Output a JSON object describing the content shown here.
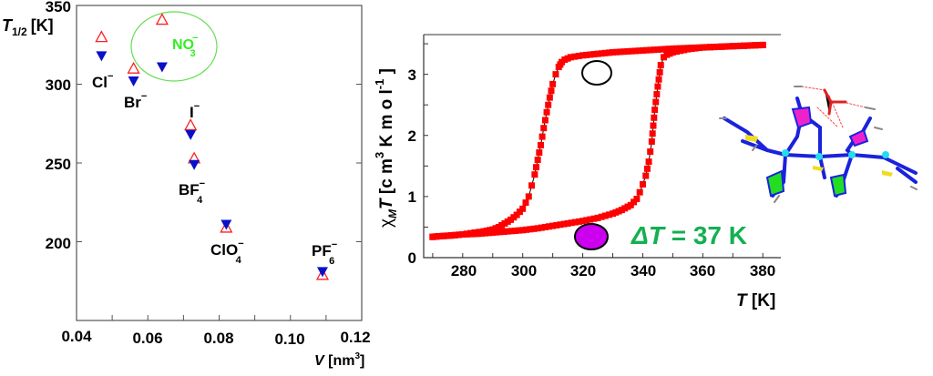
{
  "chart_data": [
    {
      "type": "scatter",
      "title": "",
      "ylabel": "T1/2 [K]",
      "ylabel_parts": {
        "main": "T",
        "sub": "1/2",
        "unit": "[K]"
      },
      "xlabel": "V [nm3]",
      "xlabel_parts": {
        "main": "V",
        "unit_open": "[nm",
        "sup": "3",
        "unit_close": "]"
      },
      "xlim": [
        0.04,
        0.12
      ],
      "ylim": [
        150,
        350
      ],
      "xticks": [
        "0.04",
        "0.06",
        "0.08",
        "0.10",
        "0.12"
      ],
      "yticks": [
        "200",
        "250",
        "300",
        "350"
      ],
      "grid": false,
      "colors": {
        "open_triangle": "#ff2020",
        "filled_triangle": "#0a10c8",
        "highlight_ellipse": "#66dd55",
        "highlight_text": "#33ee22"
      },
      "series": [
        {
          "marker": "open-triangle-up",
          "points": [
            {
              "anion": "Cl",
              "x": 0.047,
              "y": 330
            },
            {
              "anion": "Br",
              "x": 0.056,
              "y": 310
            },
            {
              "anion": "NO3",
              "x": 0.064,
              "y": 341
            },
            {
              "anion": "I",
              "x": 0.072,
              "y": 274
            },
            {
              "anion": "BF4",
              "x": 0.073,
              "y": 253
            },
            {
              "anion": "ClO4",
              "x": 0.082,
              "y": 209
            },
            {
              "anion": "PF6",
              "x": 0.109,
              "y": 179
            }
          ]
        },
        {
          "marker": "filled-triangle-down",
          "points": [
            {
              "anion": "Cl",
              "x": 0.047,
              "y": 318
            },
            {
              "anion": "Br",
              "x": 0.056,
              "y": 302
            },
            {
              "anion": "NO3",
              "x": 0.064,
              "y": 311
            },
            {
              "anion": "I",
              "x": 0.072,
              "y": 268
            },
            {
              "anion": "BF4",
              "x": 0.073,
              "y": 249
            },
            {
              "anion": "ClO4",
              "x": 0.082,
              "y": 211
            },
            {
              "anion": "PF6",
              "x": 0.109,
              "y": 181
            }
          ]
        }
      ],
      "annotations": {
        "cl": {
          "base": "Cl",
          "sup": "−"
        },
        "br": {
          "base": "Br",
          "sup": "−"
        },
        "i": {
          "base": "I",
          "sup": "−"
        },
        "bf4": {
          "base": "BF",
          "sub": "4",
          "sup": "−"
        },
        "clo4": {
          "base": "ClO",
          "sub": "4",
          "sup": "−"
        },
        "pf6": {
          "base": "PF",
          "sub": "6",
          "sup": "−"
        },
        "no3": {
          "base": "NO",
          "sub": "3",
          "sup": "−"
        }
      }
    },
    {
      "type": "line",
      "title": "",
      "ylabel": "χM T [cm3 K mol-1]",
      "ylabel_parts": {
        "chi": "χ",
        "chi_sub": "M",
        "main": "T",
        "unit_open": " [c m",
        "sup": "3",
        "unit_mid": " K m o l",
        "sup2": "-1",
        "unit_close": " ]"
      },
      "xlabel": "T [K]",
      "xlabel_parts": {
        "main": "T",
        "unit": "[K]"
      },
      "xlim": [
        267,
        386
      ],
      "ylim": [
        0,
        3.65
      ],
      "xticks": [
        "280",
        "300",
        "320",
        "340",
        "360",
        "380"
      ],
      "yticks": [
        "0",
        "1",
        "2",
        "3"
      ],
      "grid": false,
      "colors": {
        "points": "#ff0000",
        "line": "#000000",
        "delta_text": "#12b050",
        "low_spin_circle": "#cc00ee"
      },
      "annotation": {
        "delta_symbol": "ΔT",
        "delta_value": "= 37 K"
      },
      "series": [
        {
          "branch": "cooling",
          "x": [
            380,
            370,
            360,
            350,
            340,
            330,
            320,
            316,
            314,
            313,
            312,
            311,
            310,
            309,
            308,
            307,
            306,
            305,
            304,
            303,
            302,
            301,
            300,
            298,
            296,
            294,
            292,
            290,
            287,
            284,
            280,
            276,
            272,
            270
          ],
          "y": [
            3.48,
            3.46,
            3.44,
            3.42,
            3.39,
            3.36,
            3.31,
            3.28,
            3.24,
            3.2,
            3.12,
            3.0,
            2.84,
            2.62,
            2.38,
            2.12,
            1.84,
            1.6,
            1.36,
            1.18,
            1.0,
            0.9,
            0.8,
            0.7,
            0.62,
            0.56,
            0.5,
            0.46,
            0.43,
            0.41,
            0.38,
            0.36,
            0.35,
            0.34
          ]
        },
        {
          "branch": "heating",
          "x": [
            270,
            275,
            280,
            285,
            290,
            295,
            300,
            305,
            310,
            315,
            320,
            325,
            330,
            333,
            336,
            338,
            339,
            340,
            341,
            342,
            343,
            344,
            345,
            346,
            347,
            348,
            350,
            355,
            360,
            370,
            380
          ],
          "y": [
            0.34,
            0.36,
            0.38,
            0.39,
            0.41,
            0.43,
            0.45,
            0.48,
            0.52,
            0.56,
            0.6,
            0.65,
            0.72,
            0.78,
            0.86,
            0.96,
            1.07,
            1.2,
            1.34,
            1.57,
            1.9,
            2.42,
            2.8,
            3.15,
            3.28,
            3.32,
            3.36,
            3.41,
            3.44,
            3.46,
            3.48
          ]
        }
      ]
    }
  ]
}
